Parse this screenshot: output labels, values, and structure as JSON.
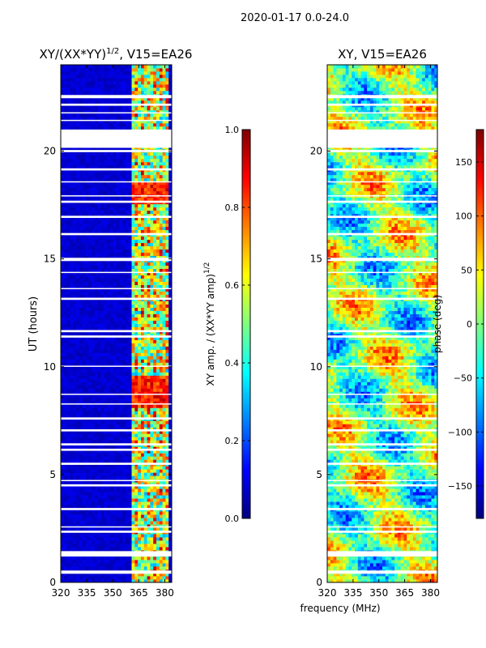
{
  "figure_title": "2020-01-17 0.0-24.0",
  "colors": {
    "jet": [
      "#00007f",
      "#0000ff",
      "#007fff",
      "#00ffff",
      "#7fff7f",
      "#ffff00",
      "#ff7f00",
      "#ff0000",
      "#7f0000"
    ],
    "gap": "#ffffff",
    "frame": "#000000"
  },
  "chart_data": [
    {
      "type": "heatmap",
      "panel": "left",
      "title_main": "XY/(XX*YY)",
      "title_sup": "1/2",
      "title_tail": ", V15=EA26",
      "ylabel": "UT (hours)",
      "xlabel": "",
      "x_ticks": [
        "320",
        "335",
        "350",
        "365",
        "380"
      ],
      "x_tick_values": [
        320,
        335,
        350,
        365,
        380
      ],
      "y_ticks": [
        "0",
        "5",
        "10",
        "15",
        "20"
      ],
      "y_tick_values": [
        0,
        5,
        10,
        15,
        20
      ],
      "xlim": [
        320,
        384
      ],
      "ylim": [
        0,
        24
      ],
      "colorbar": {
        "label_main": "XY amp. / (XX*YY amp)",
        "label_sup": "1/2",
        "ticks": [
          "0.0",
          "0.2",
          "0.4",
          "0.6",
          "0.8",
          "1.0"
        ],
        "tick_values": [
          0.0,
          0.2,
          0.4,
          0.6,
          0.8,
          1.0
        ],
        "range": [
          0,
          1
        ]
      },
      "description_values": {
        "background_amplitude": 0.05,
        "active_band_MHz": [
          361,
          382
        ],
        "active_band_amplitude_range": [
          0.3,
          0.95
        ]
      }
    },
    {
      "type": "heatmap",
      "panel": "right",
      "title_main": "XY, V15=EA26",
      "xlabel": "frequency (MHz)",
      "ylabel": "",
      "x_ticks": [
        "320",
        "335",
        "350",
        "365",
        "380"
      ],
      "x_tick_values": [
        320,
        335,
        350,
        365,
        380
      ],
      "y_ticks": [
        "0",
        "5",
        "10",
        "15",
        "20"
      ],
      "y_tick_values": [
        0,
        5,
        10,
        15,
        20
      ],
      "xlim": [
        320,
        384
      ],
      "ylim": [
        0,
        24
      ],
      "colorbar": {
        "label_main": "phase (deg)",
        "ticks": [
          "−150",
          "−100",
          "−50",
          "0",
          "50",
          "100",
          "150"
        ],
        "tick_values": [
          -150,
          -100,
          -50,
          0,
          50,
          100,
          150
        ],
        "range": [
          -180,
          180
        ]
      }
    }
  ],
  "data_gaps_hours": [
    [
      0.4,
      0.55
    ],
    [
      1.2,
      1.45
    ],
    [
      2.3,
      2.4
    ],
    [
      2.55,
      2.6
    ],
    [
      3.35,
      3.45
    ],
    [
      4.45,
      4.55
    ],
    [
      4.7,
      4.75
    ],
    [
      5.45,
      5.55
    ],
    [
      6.1,
      6.2
    ],
    [
      6.35,
      6.45
    ],
    [
      7.0,
      7.1
    ],
    [
      7.55,
      7.65
    ],
    [
      8.25,
      8.3
    ],
    [
      8.7,
      8.75
    ],
    [
      10.0,
      10.05
    ],
    [
      11.35,
      11.45
    ],
    [
      11.6,
      11.7
    ],
    [
      13.1,
      13.2
    ],
    [
      13.6,
      13.65
    ],
    [
      14.35,
      14.4
    ],
    [
      14.9,
      15.05
    ],
    [
      16.1,
      16.2
    ],
    [
      16.9,
      17.0
    ],
    [
      17.6,
      17.7
    ],
    [
      17.9,
      17.95
    ],
    [
      18.55,
      18.6
    ],
    [
      19.1,
      19.2
    ],
    [
      19.95,
      20.05
    ],
    [
      20.15,
      21.0
    ],
    [
      21.4,
      21.45
    ],
    [
      21.75,
      21.8
    ],
    [
      22.1,
      22.2
    ],
    [
      22.45,
      22.6
    ]
  ]
}
